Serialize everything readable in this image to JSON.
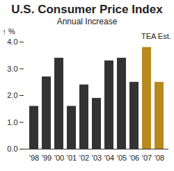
{
  "chart_data": {
    "type": "bar",
    "title": "U.S. Consumer Price Index",
    "subtitle": "Annual Increase",
    "y_label": "%",
    "annotation": "TEA Est.",
    "categories": [
      "'98",
      "'99",
      "'00",
      "'01",
      "'02",
      "'03",
      "'04",
      "'05",
      "'06",
      "'07",
      "'08"
    ],
    "values": [
      1.6,
      2.7,
      3.4,
      1.6,
      2.4,
      1.9,
      3.3,
      3.4,
      2.5,
      3.8,
      2.5
    ],
    "colors": [
      "#333333",
      "#333333",
      "#333333",
      "#333333",
      "#333333",
      "#333333",
      "#333333",
      "#333333",
      "#333333",
      "#b8891c",
      "#b8891c"
    ],
    "ylim": [
      0,
      4
    ],
    "yticks": [
      {
        "value": 0,
        "label": "0.0"
      },
      {
        "value": 1,
        "label": "1.0"
      },
      {
        "value": 2,
        "label": "2.0"
      },
      {
        "value": 3,
        "label": "3.0"
      },
      {
        "value": 4,
        "label": "4.0"
      }
    ],
    "grid": false
  }
}
